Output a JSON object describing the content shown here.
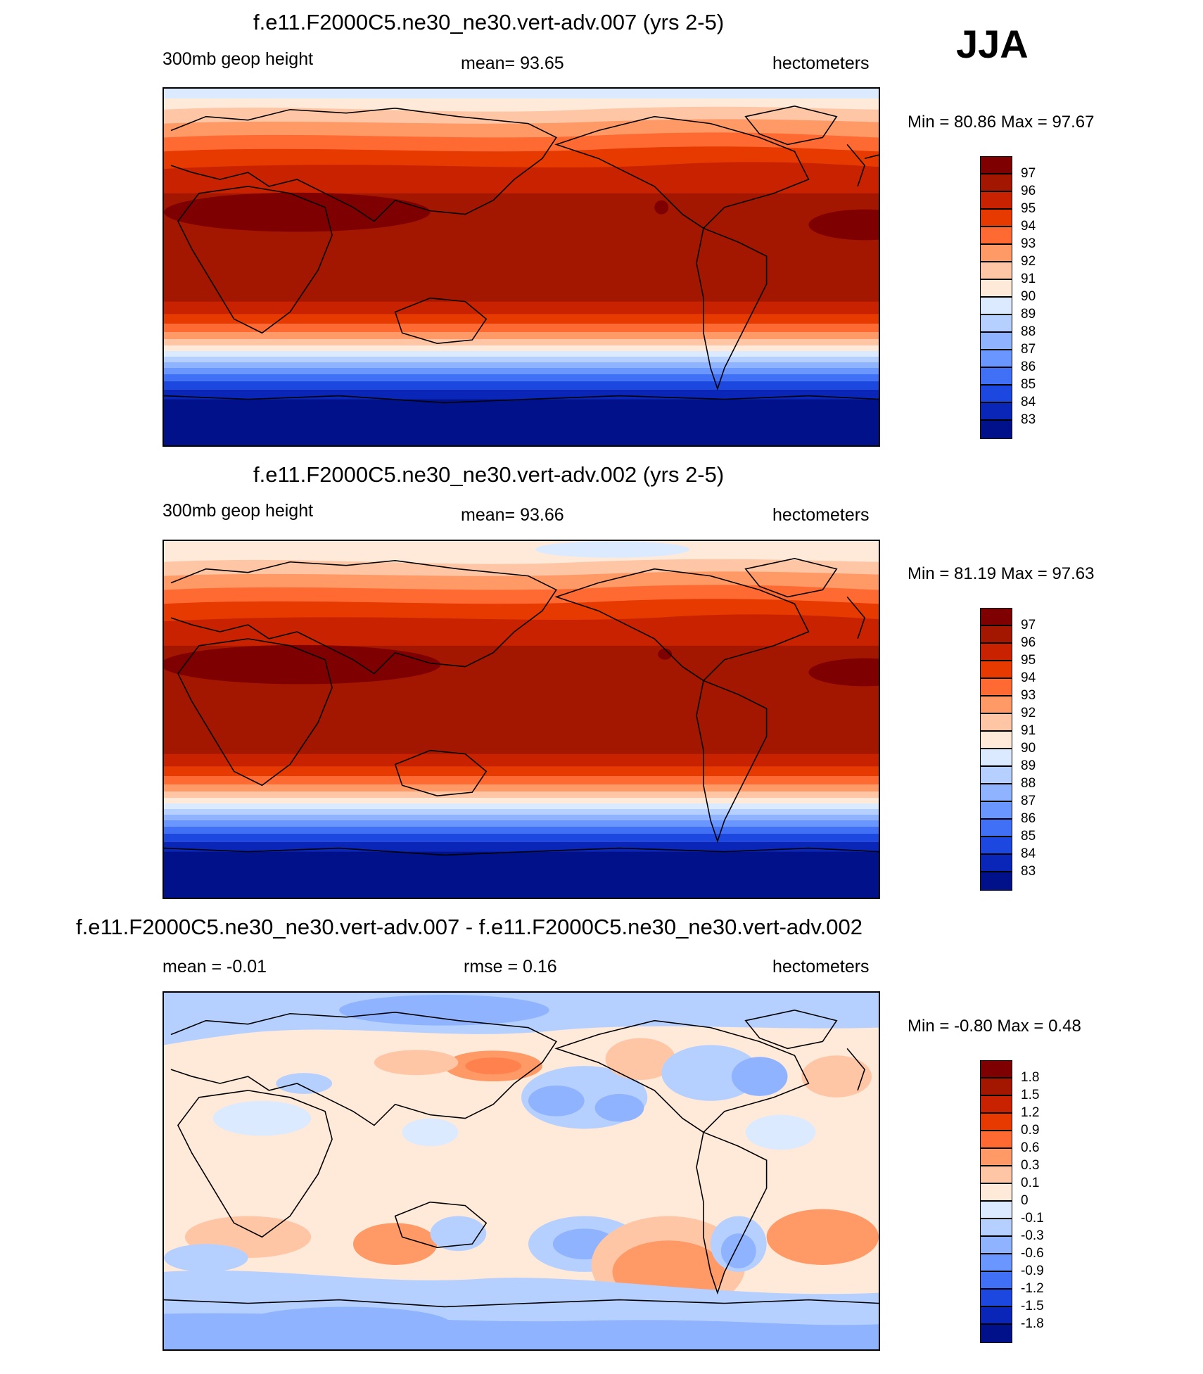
{
  "season": "JJA",
  "panels": [
    {
      "title": "f.e11.F2000C5.ne30_ne30.vert-adv.007 (yrs 2-5)",
      "left_label": "300mb geop height",
      "mid_label": "mean=  93.65",
      "right_label": "hectometers",
      "minmax": "Min =  80.86 Max =  97.67",
      "colorbar": {
        "labels": [
          "97",
          "96",
          "95",
          "94",
          "93",
          "92",
          "91",
          "90",
          "89",
          "88",
          "87",
          "86",
          "85",
          "84",
          "83"
        ],
        "colors": [
          "#7f0000",
          "#a31600",
          "#c82200",
          "#e63a00",
          "#ff6a33",
          "#ff9966",
          "#ffc6a6",
          "#ffe9d9",
          "#dbeaff",
          "#b5d0ff",
          "#8fb3ff",
          "#6a96ff",
          "#3f70f5",
          "#1c48e0",
          "#0a26b8",
          "#00118a"
        ]
      }
    },
    {
      "title": "f.e11.F2000C5.ne30_ne30.vert-adv.002 (yrs 2-5)",
      "left_label": "300mb geop height",
      "mid_label": "mean=  93.66",
      "right_label": "hectometers",
      "minmax": "Min =  81.19 Max =  97.63",
      "colorbar": {
        "labels": [
          "97",
          "96",
          "95",
          "94",
          "93",
          "92",
          "91",
          "90",
          "89",
          "88",
          "87",
          "86",
          "85",
          "84",
          "83"
        ],
        "colors": [
          "#7f0000",
          "#a31600",
          "#c82200",
          "#e63a00",
          "#ff6a33",
          "#ff9966",
          "#ffc6a6",
          "#ffe9d9",
          "#dbeaff",
          "#b5d0ff",
          "#8fb3ff",
          "#6a96ff",
          "#3f70f5",
          "#1c48e0",
          "#0a26b8",
          "#00118a"
        ]
      }
    },
    {
      "title": "f.e11.F2000C5.ne30_ne30.vert-adv.007 - f.e11.F2000C5.ne30_ne30.vert-adv.002",
      "left_label": "mean =  -0.01",
      "mid_label": "rmse =   0.16",
      "right_label": "hectometers",
      "minmax": "Min =  -0.80 Max =   0.48",
      "colorbar": {
        "labels": [
          "1.8",
          "1.5",
          "1.2",
          "0.9",
          "0.6",
          "0.3",
          "0.1",
          "0",
          "-0.1",
          "-0.3",
          "-0.6",
          "-0.9",
          "-1.2",
          "-1.5",
          "-1.8"
        ],
        "colors": [
          "#7f0000",
          "#a31600",
          "#c82200",
          "#e63a00",
          "#ff6a33",
          "#ff9966",
          "#ffc6a6",
          "#ffe9d9",
          "#dbeaff",
          "#b5d0ff",
          "#8fb3ff",
          "#6a96ff",
          "#3f70f5",
          "#1c48e0",
          "#0a26b8",
          "#00118a"
        ]
      }
    }
  ],
  "colors": {
    "warm_darkest": "#7f0000",
    "cold_darkest": "#00118a",
    "coastline": "#000000"
  }
}
